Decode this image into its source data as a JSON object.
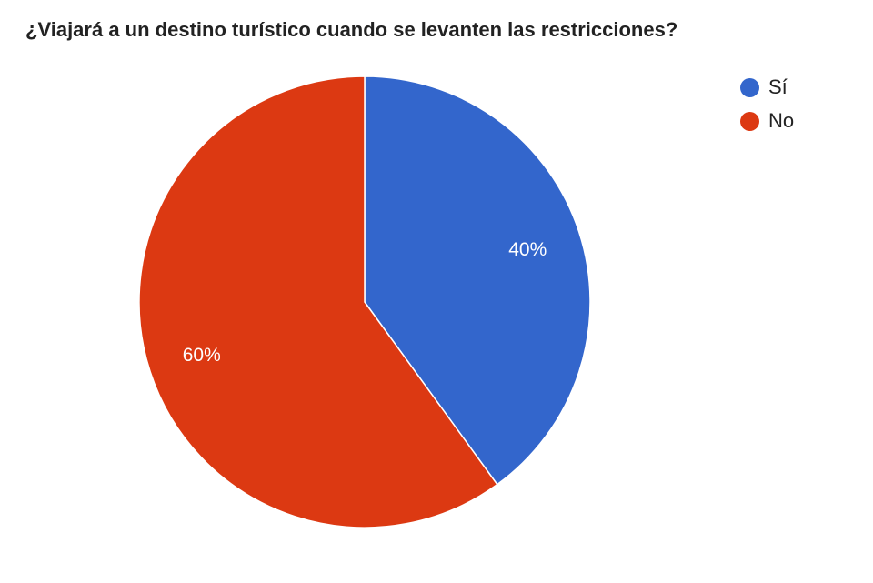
{
  "chart_data": {
    "type": "pie",
    "title": "¿Viajará a un destino turístico cuando se levanten las restricciones?",
    "categories": [
      "Sí",
      "No"
    ],
    "values": [
      40,
      60
    ],
    "data_labels": [
      "40%",
      "60%"
    ],
    "colors": [
      "#3366cc",
      "#dc3912"
    ],
    "legend_position": "top-right",
    "start": "top, clockwise"
  }
}
